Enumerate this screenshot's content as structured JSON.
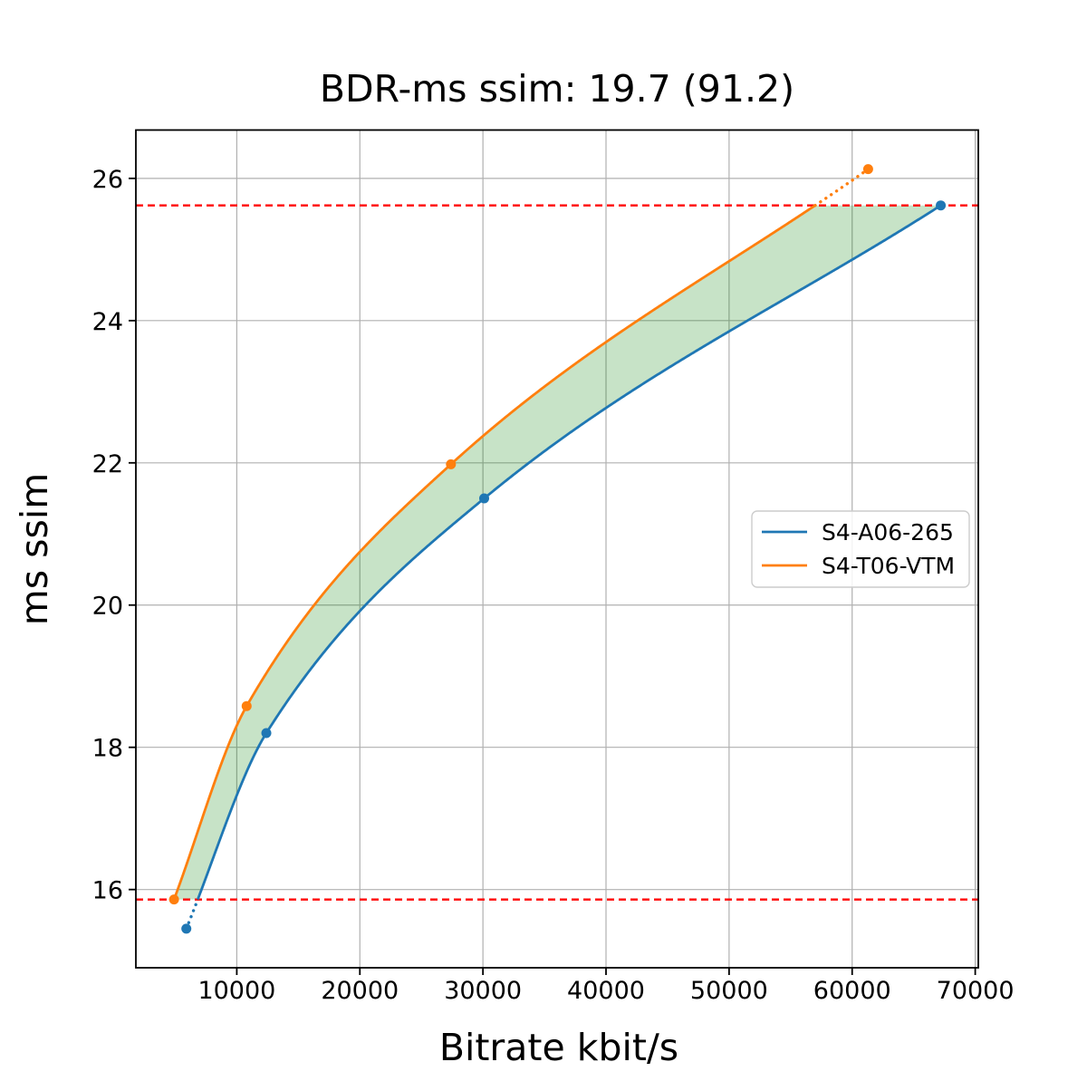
{
  "chart_data": {
    "type": "line",
    "title": "BDR-ms ssim: 19.7 (91.2)",
    "xlabel": "Bitrate kbit/s",
    "ylabel": "ms ssim",
    "xlim": [
      1800,
      70250
    ],
    "ylim": [
      14.9,
      26.68
    ],
    "xticks": [
      10000,
      20000,
      30000,
      40000,
      50000,
      60000,
      70000
    ],
    "yticks": [
      16,
      18,
      20,
      22,
      24,
      26
    ],
    "grid": true,
    "grid_color": "#b0b0b0",
    "axis_color": "#000000",
    "series": [
      {
        "name": "S4-A06-265",
        "color": "#1f77b4",
        "x": [
          5900,
          12400,
          30100,
          67200
        ],
        "y": [
          15.45,
          18.2,
          21.5,
          25.62
        ]
      },
      {
        "name": "S4-T06-VTM",
        "color": "#ff7f0e",
        "x": [
          4900,
          10800,
          27400,
          61300
        ],
        "y": [
          15.86,
          18.58,
          21.98,
          26.13
        ]
      }
    ],
    "reference_lines": {
      "values": [
        15.86,
        25.62
      ],
      "color": "#ff0000",
      "style": "dashed"
    },
    "fill_between": {
      "color": "#008000",
      "opacity": 0.22,
      "clipped_to_reference_lines": true
    },
    "legend": {
      "position": "center right"
    }
  }
}
